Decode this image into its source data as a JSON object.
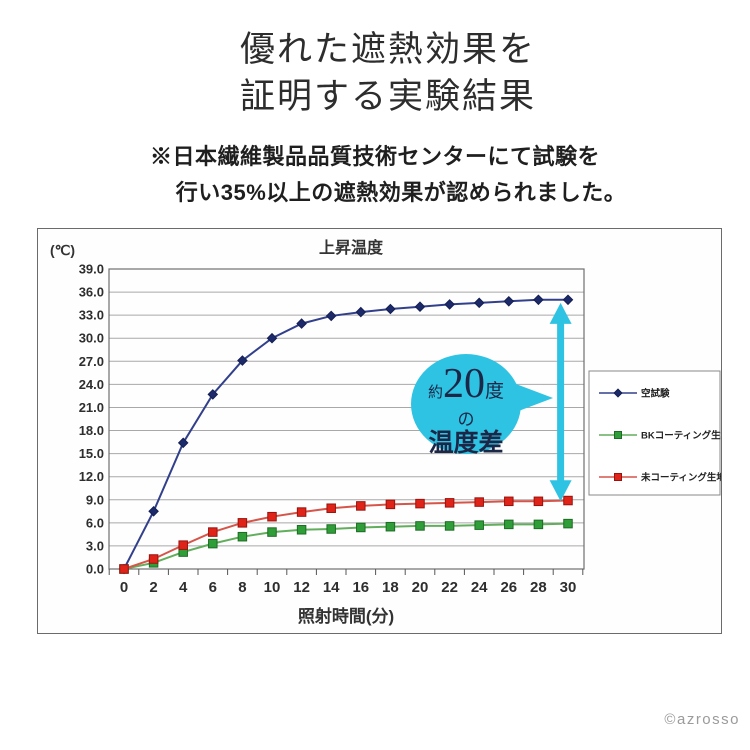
{
  "header": {
    "title_line1": "優れた遮熱効果を",
    "title_line2": "証明する実験結果",
    "note_line1": "※日本繊維製品品質技術センターにて試験を",
    "note_line2": "行い35%以上の遮熱効果が認められました。"
  },
  "footer": {
    "credit": "©azrosso"
  },
  "chart_data": {
    "type": "line",
    "title": "上昇温度",
    "y_unit_label": "(℃)",
    "xlabel": "照射時間(分)",
    "ylabel": "",
    "x": [
      0,
      2,
      4,
      6,
      8,
      10,
      12,
      14,
      16,
      18,
      20,
      22,
      24,
      26,
      28,
      30
    ],
    "ylim": [
      0,
      39
    ],
    "ytick_step": 3,
    "grid": "horizontal",
    "legend_position": "right",
    "series": [
      {
        "name": "空試験",
        "marker": "diamond",
        "line_color": "#32408c",
        "marker_color": "#1c2a6b",
        "marker_edge": "#141f52",
        "values": [
          0.0,
          7.5,
          16.4,
          22.7,
          27.1,
          30.0,
          31.9,
          32.9,
          33.4,
          33.8,
          34.1,
          34.4,
          34.6,
          34.8,
          35.0,
          35.0
        ]
      },
      {
        "name": "BKコーティング生地",
        "marker": "square",
        "line_color": "#62ae5c",
        "marker_color": "#2f9e38",
        "marker_edge": "#1d6b24",
        "values": [
          0.0,
          0.8,
          2.2,
          3.3,
          4.2,
          4.8,
          5.1,
          5.2,
          5.4,
          5.5,
          5.6,
          5.6,
          5.7,
          5.8,
          5.8,
          5.9
        ]
      },
      {
        "name": "未コーティング生地",
        "marker": "square",
        "line_color": "#d6554a",
        "marker_color": "#e02318",
        "marker_edge": "#99120e",
        "values": [
          0.0,
          1.3,
          3.1,
          4.8,
          6.0,
          6.8,
          7.4,
          7.9,
          8.2,
          8.4,
          8.5,
          8.6,
          8.7,
          8.8,
          8.8,
          8.9
        ]
      }
    ],
    "annotation": {
      "text_prefix": "約",
      "text_big": "20",
      "text_suffix": "度",
      "text_line2": "の",
      "text_line3": "温度差",
      "color": "#2fc3e3",
      "text_color": "#1c2747",
      "arrow": {
        "at_x": 29.5,
        "from_value": 34.6,
        "to_value": 8.8
      }
    }
  }
}
